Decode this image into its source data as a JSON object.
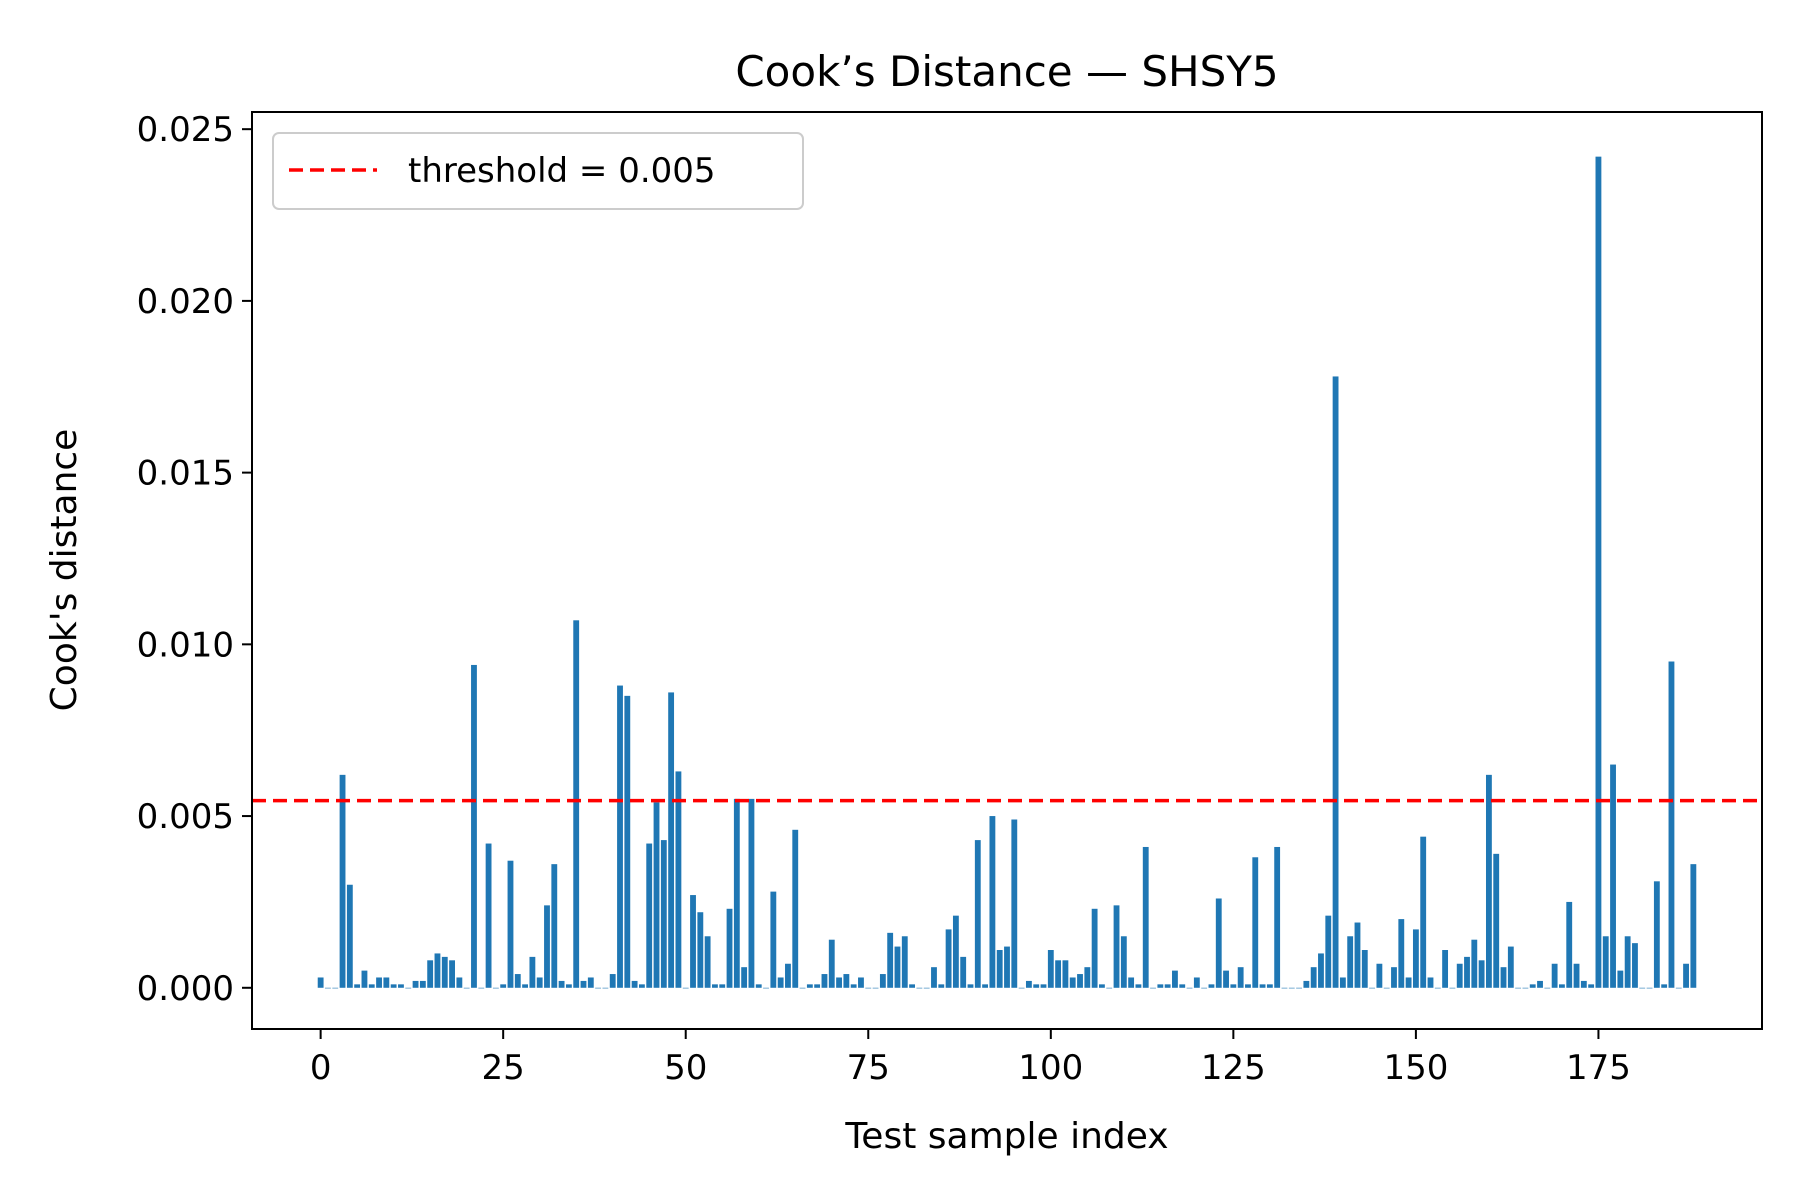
{
  "chart_data": {
    "type": "bar",
    "title": "Cook’s Distance — SHSY5",
    "xlabel": "Test sample index",
    "ylabel": "Cook's distance",
    "xlim": [
      -9.4,
      197.4
    ],
    "ylim": [
      -0.0012,
      0.0255
    ],
    "xticks": [
      0,
      25,
      50,
      75,
      100,
      125,
      150,
      175
    ],
    "yticks": [
      0.0,
      0.005,
      0.01,
      0.015,
      0.02,
      0.025
    ],
    "ytick_labels": [
      "0.000",
      "0.005",
      "0.010",
      "0.015",
      "0.020",
      "0.025"
    ],
    "grid": false,
    "legend": {
      "placement": "top-left",
      "entries": [
        {
          "label": "threshold = 0.005",
          "color": "#ff0000",
          "style": "dashed"
        }
      ]
    },
    "threshold": {
      "value": 0.00545,
      "color": "#ff0000"
    },
    "bar_color": "#1f77b4",
    "x": [
      0,
      1,
      2,
      3,
      4,
      5,
      6,
      7,
      8,
      9,
      10,
      11,
      12,
      13,
      14,
      15,
      16,
      17,
      18,
      19,
      20,
      21,
      22,
      23,
      24,
      25,
      26,
      27,
      28,
      29,
      30,
      31,
      32,
      33,
      34,
      35,
      36,
      37,
      38,
      39,
      40,
      41,
      42,
      43,
      44,
      45,
      46,
      47,
      48,
      49,
      50,
      51,
      52,
      53,
      54,
      55,
      56,
      57,
      58,
      59,
      60,
      61,
      62,
      63,
      64,
      65,
      66,
      67,
      68,
      69,
      70,
      71,
      72,
      73,
      74,
      75,
      76,
      77,
      78,
      79,
      80,
      81,
      82,
      83,
      84,
      85,
      86,
      87,
      88,
      89,
      90,
      91,
      92,
      93,
      94,
      95,
      96,
      97,
      98,
      99,
      100,
      101,
      102,
      103,
      104,
      105,
      106,
      107,
      108,
      109,
      110,
      111,
      112,
      113,
      114,
      115,
      116,
      117,
      118,
      119,
      120,
      121,
      122,
      123,
      124,
      125,
      126,
      127,
      128,
      129,
      130,
      131,
      132,
      133,
      134,
      135,
      136,
      137,
      138,
      139,
      140,
      141,
      142,
      143,
      144,
      145,
      146,
      147,
      148,
      149,
      150,
      151,
      152,
      153,
      154,
      155,
      156,
      157,
      158,
      159,
      160,
      161,
      162,
      163,
      164,
      165,
      166,
      167,
      168,
      169,
      170,
      171,
      172,
      173,
      174,
      175,
      176,
      177,
      178,
      179,
      180,
      181,
      182,
      183,
      184,
      185,
      186,
      187,
      188
    ],
    "values": [
      0.0003,
      0.0,
      0.0,
      0.0062,
      0.003,
      0.0001,
      0.0005,
      0.0001,
      0.0003,
      0.0003,
      0.0001,
      0.0001,
      0.0,
      0.0002,
      0.0002,
      0.0008,
      0.001,
      0.0009,
      0.0008,
      0.0003,
      0.0,
      0.0094,
      0.0,
      0.0042,
      0.0,
      0.0001,
      0.0037,
      0.0004,
      0.0001,
      0.0009,
      0.0003,
      0.0024,
      0.0036,
      0.0002,
      0.0001,
      0.0107,
      0.0002,
      0.0003,
      0.0,
      0.0,
      0.0004,
      0.0088,
      0.0085,
      0.0002,
      0.0001,
      0.0042,
      0.0054,
      0.0043,
      0.0086,
      0.0063,
      0.0,
      0.0027,
      0.0022,
      0.0015,
      0.0001,
      0.0001,
      0.0023,
      0.0055,
      0.0006,
      0.0055,
      0.0001,
      0.0,
      0.0028,
      0.0003,
      0.0007,
      0.0046,
      0.0,
      0.0001,
      0.0001,
      0.0004,
      0.0014,
      0.0003,
      0.0004,
      0.0001,
      0.0003,
      0.0,
      0.0,
      0.0004,
      0.0016,
      0.0012,
      0.0015,
      0.0001,
      0.0,
      0.0,
      0.0006,
      0.0001,
      0.0017,
      0.0021,
      0.0009,
      0.0001,
      0.0043,
      0.0001,
      0.005,
      0.0011,
      0.0012,
      0.0049,
      0.0,
      0.0002,
      0.0001,
      0.0001,
      0.0011,
      0.0008,
      0.0008,
      0.0003,
      0.0004,
      0.0006,
      0.0023,
      0.0001,
      0.0,
      0.0024,
      0.0015,
      0.0003,
      0.0001,
      0.0041,
      0.0,
      0.0001,
      0.0001,
      0.0005,
      0.0001,
      0.0,
      0.0003,
      0.0,
      0.0001,
      0.0026,
      0.0005,
      0.0001,
      0.0006,
      0.0001,
      0.0038,
      0.0001,
      0.0001,
      0.0041,
      0.0,
      0.0,
      0.0,
      0.0002,
      0.0006,
      0.001,
      0.0021,
      0.0178,
      0.0003,
      0.0015,
      0.0019,
      0.0011,
      0.0,
      0.0007,
      0.0,
      0.0006,
      0.002,
      0.0003,
      0.0017,
      0.0044,
      0.0003,
      0.0,
      0.0011,
      0.0,
      0.0007,
      0.0009,
      0.0014,
      0.0008,
      0.0062,
      0.0039,
      0.0006,
      0.0012,
      0.0,
      0.0,
      0.0001,
      0.0002,
      0.0,
      0.0007,
      0.0001,
      0.0025,
      0.0007,
      0.0002,
      0.0001,
      0.0242,
      0.0015,
      0.0065,
      0.0005,
      0.0015,
      0.0013,
      0.0,
      0.0,
      0.0031,
      0.0001,
      0.0095,
      0.0,
      0.0007,
      0.0036
    ]
  }
}
